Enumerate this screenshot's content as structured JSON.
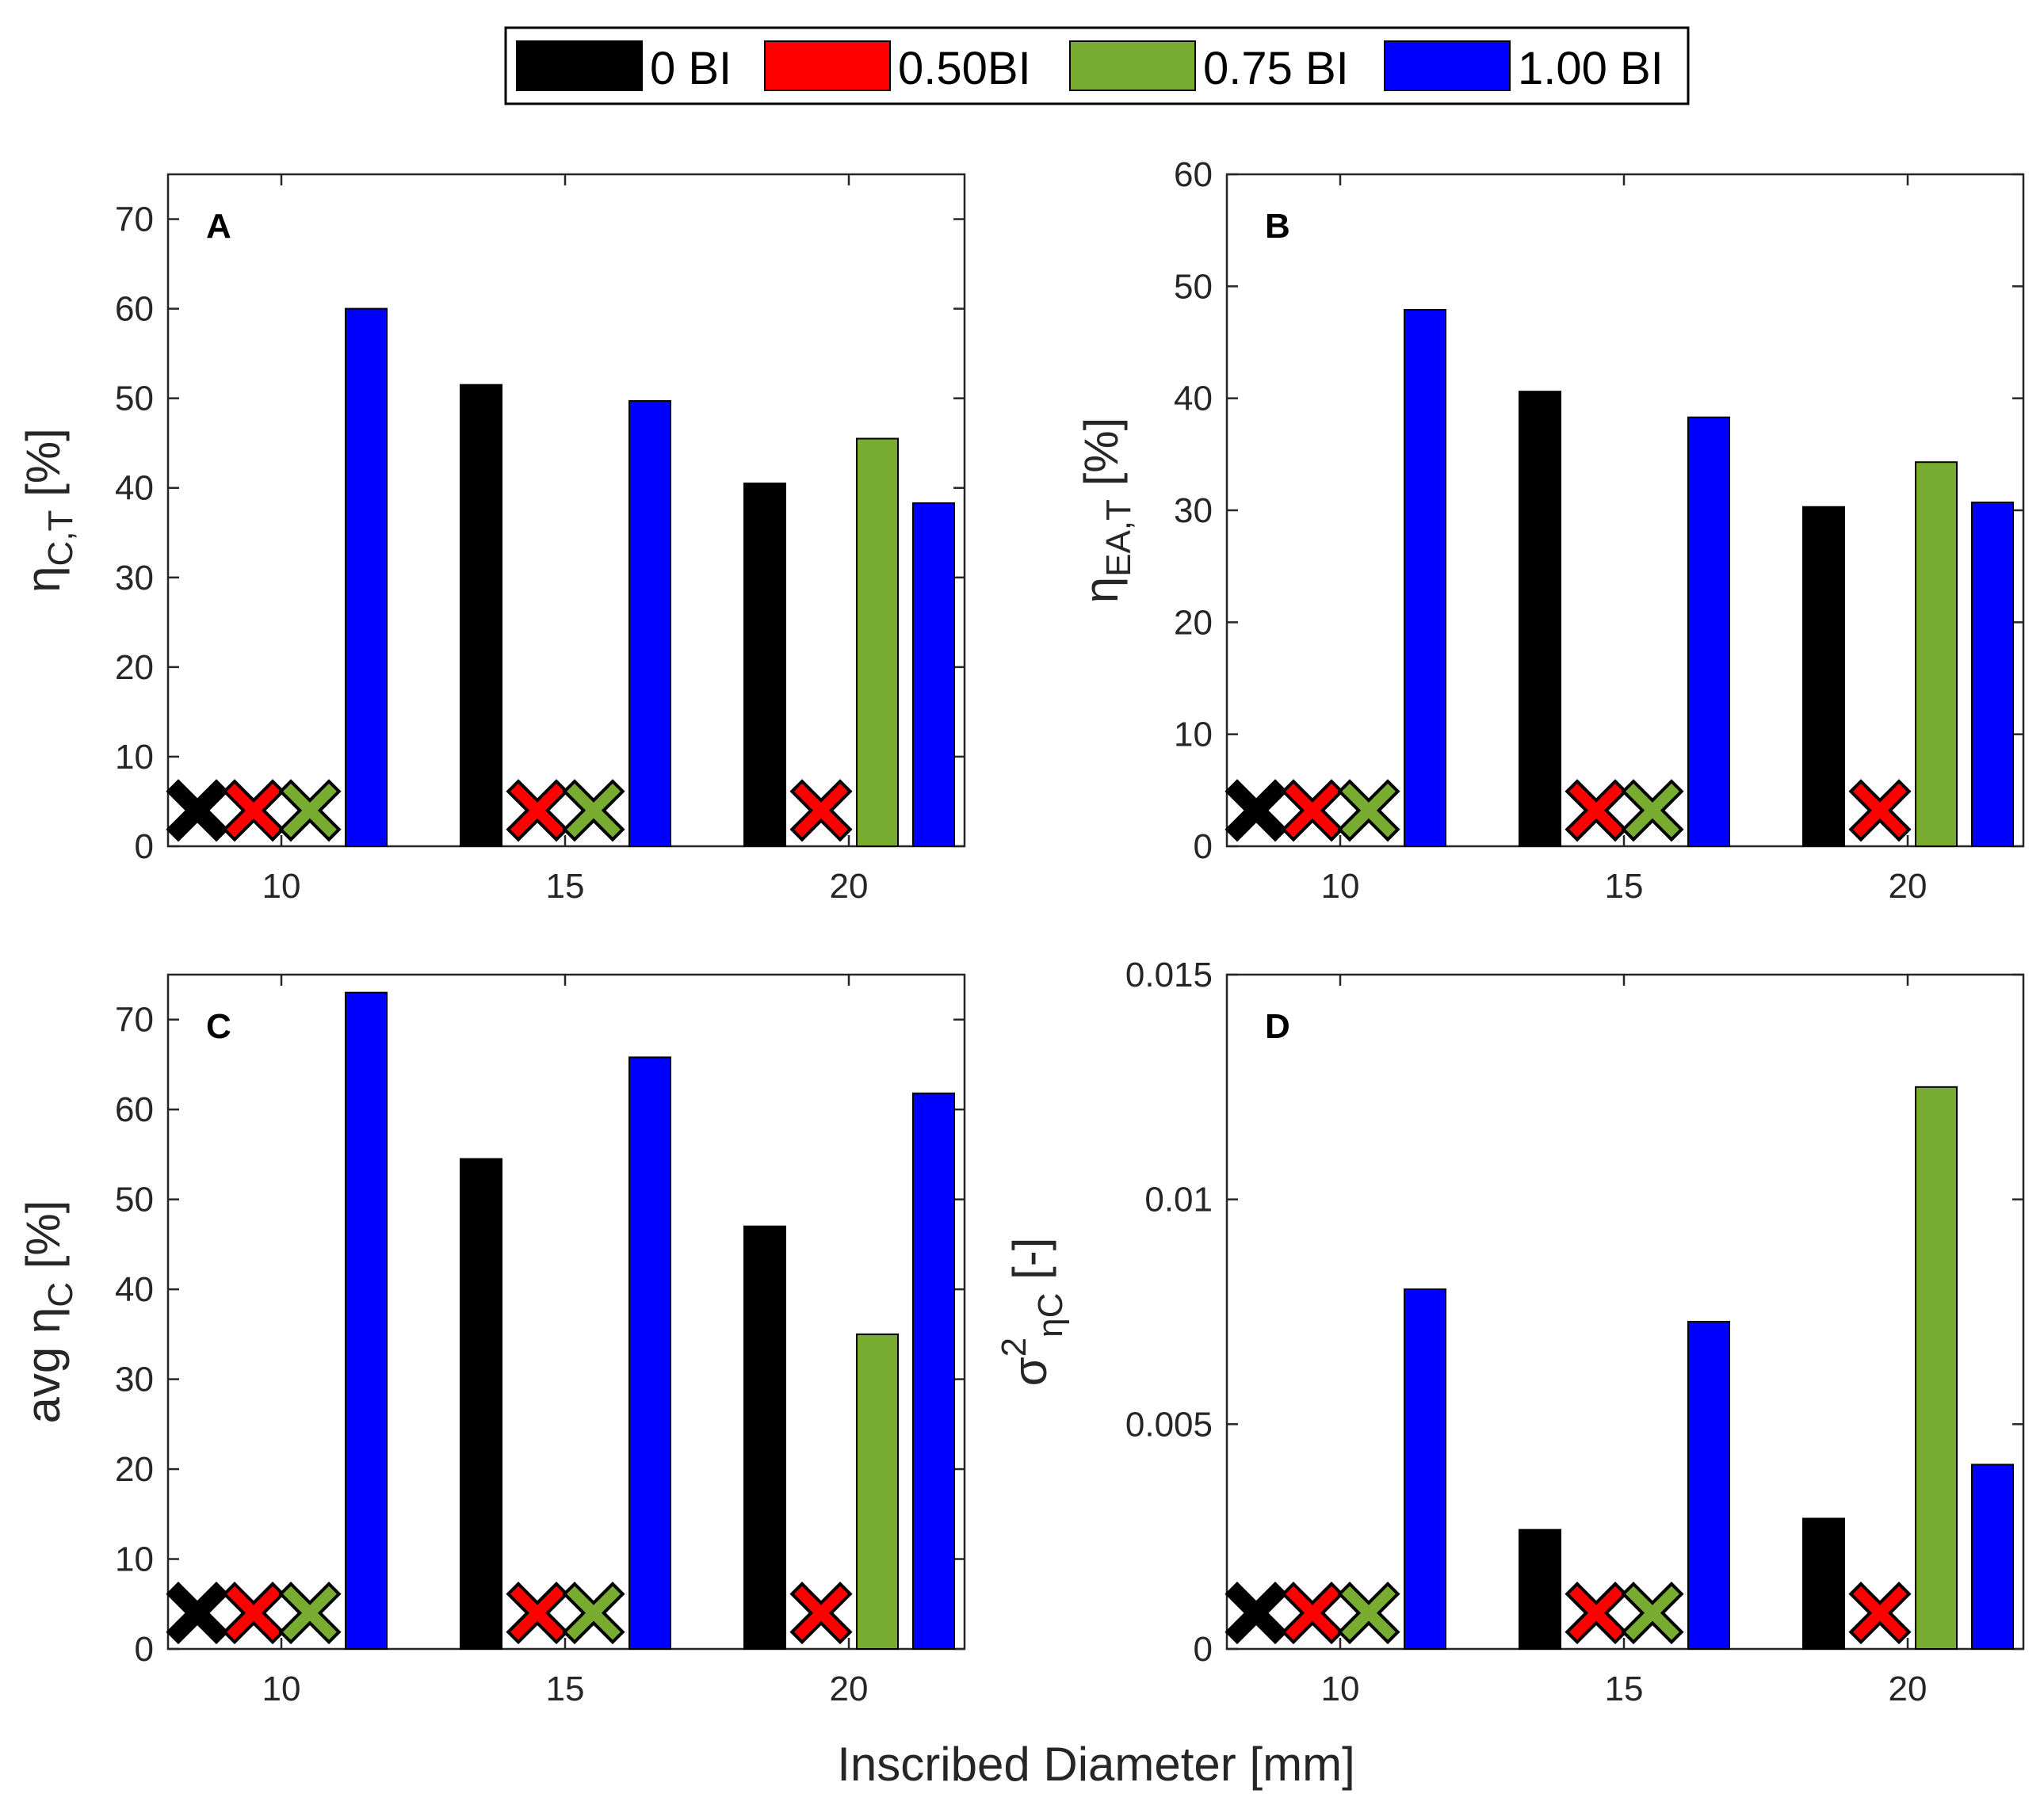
{
  "figure": {
    "xlabel": "Inscribed Diameter [mm]",
    "legend": [
      {
        "label": "0 BI",
        "color": "#000000"
      },
      {
        "label": "0.50BI",
        "color": "#ff0000"
      },
      {
        "label": "0.75 BI",
        "color": "#77ac30"
      },
      {
        "label": "1.00 BI",
        "color": "#0000ff"
      }
    ]
  },
  "chart_data": [
    {
      "type": "bar",
      "panel": "A",
      "ylabel_main": "η",
      "ylabel_sub": "C,T",
      "ylabel_suffix": " [%]",
      "categories": [
        "10",
        "15",
        "20"
      ],
      "ylim": [
        0,
        75
      ],
      "yticks": [
        0,
        10,
        20,
        30,
        40,
        50,
        60,
        70
      ],
      "ytick_labels": [
        "0",
        "10",
        "20",
        "30",
        "40",
        "50",
        "60",
        "70"
      ],
      "series": [
        {
          "name": "0 BI",
          "values": [
            null,
            51.5,
            40.5
          ]
        },
        {
          "name": "0.50BI",
          "values": [
            null,
            null,
            null
          ]
        },
        {
          "name": "0.75 BI",
          "values": [
            null,
            null,
            45.5
          ]
        },
        {
          "name": "1.00 BI",
          "values": [
            60.0,
            49.7,
            38.3
          ]
        }
      ],
      "failed_markers_value": 4
    },
    {
      "type": "bar",
      "panel": "B",
      "ylabel_main": "η",
      "ylabel_sub": "EA,T",
      "ylabel_suffix": " [%]",
      "categories": [
        "10",
        "15",
        "20"
      ],
      "ylim": [
        0,
        60
      ],
      "yticks": [
        0,
        10,
        20,
        30,
        40,
        50,
        60
      ],
      "ytick_labels": [
        "0",
        "10",
        "20",
        "30",
        "40",
        "50",
        "60"
      ],
      "series": [
        {
          "name": "0 BI",
          "values": [
            null,
            40.6,
            30.3
          ]
        },
        {
          "name": "0.50BI",
          "values": [
            null,
            null,
            null
          ]
        },
        {
          "name": "0.75 BI",
          "values": [
            null,
            null,
            34.3
          ]
        },
        {
          "name": "1.00 BI",
          "values": [
            47.9,
            38.3,
            30.7
          ]
        }
      ],
      "failed_markers_value": 3.2
    },
    {
      "type": "bar",
      "panel": "C",
      "ylabel_main": "avg η",
      "ylabel_sub": "C",
      "ylabel_suffix": " [%]",
      "categories": [
        "10",
        "15",
        "20"
      ],
      "ylim": [
        0,
        75
      ],
      "yticks": [
        0,
        10,
        20,
        30,
        40,
        50,
        60,
        70
      ],
      "ytick_labels": [
        "0",
        "10",
        "20",
        "30",
        "40",
        "50",
        "60",
        "70"
      ],
      "series": [
        {
          "name": "0 BI",
          "values": [
            null,
            54.5,
            47.0
          ]
        },
        {
          "name": "0.50BI",
          "values": [
            null,
            null,
            null
          ]
        },
        {
          "name": "0.75 BI",
          "values": [
            null,
            null,
            35.0
          ]
        },
        {
          "name": "1.00 BI",
          "values": [
            73.0,
            65.8,
            61.8
          ]
        }
      ],
      "failed_markers_value": 4
    },
    {
      "type": "bar",
      "panel": "D",
      "ylabel_main": "σ",
      "ylabel_sup": "2",
      "ylabel_sub": "ηC",
      "ylabel_suffix": " [-]",
      "categories": [
        "10",
        "15",
        "20"
      ],
      "ylim": [
        0,
        0.015
      ],
      "yticks": [
        0,
        0.005,
        0.01,
        0.015
      ],
      "ytick_labels": [
        "0",
        "0.005",
        "0.01",
        "0.015"
      ],
      "series": [
        {
          "name": "0 BI",
          "values": [
            null,
            0.00265,
            0.0029
          ]
        },
        {
          "name": "0.50BI",
          "values": [
            null,
            null,
            null
          ]
        },
        {
          "name": "0.75 BI",
          "values": [
            null,
            null,
            0.0125
          ]
        },
        {
          "name": "1.00 BI",
          "values": [
            0.008,
            0.00728,
            0.0041
          ]
        }
      ],
      "failed_markers_value": 0.0008
    }
  ]
}
